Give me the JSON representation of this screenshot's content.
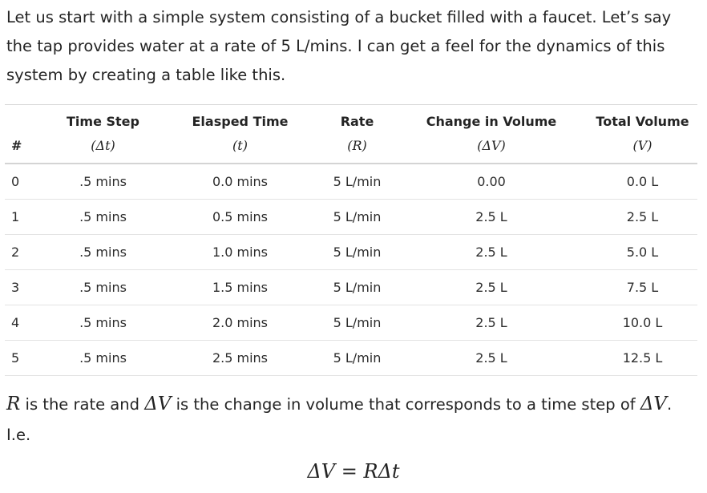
{
  "intro": {
    "line1": "Let us start with a simple system consisting of a bucket filled with a faucet. Let’s say",
    "line2": "the tap provides water at a rate of 5 L/mins. I can get a feel for the dynamics of this",
    "line3": "system by creating a table like this."
  },
  "table": {
    "headers": [
      {
        "label": "#",
        "symbol": ""
      },
      {
        "label": "Time Step",
        "symbol": "(Δt)"
      },
      {
        "label": "Elasped Time",
        "symbol": "(t)"
      },
      {
        "label": "Rate",
        "symbol": "(R)"
      },
      {
        "label": "Change in Volume",
        "symbol": "(ΔV)"
      },
      {
        "label": "Total Volume",
        "symbol": "(V)"
      }
    ],
    "rows": [
      [
        "0",
        ".5 mins",
        "0.0 mins",
        "5 L/min",
        "0.00",
        "0.0 L"
      ],
      [
        "1",
        ".5 mins",
        "0.5 mins",
        "5 L/min",
        "2.5 L",
        "2.5 L"
      ],
      [
        "2",
        ".5 mins",
        "1.0 mins",
        "5 L/min",
        "2.5 L",
        "5.0 L"
      ],
      [
        "3",
        ".5 mins",
        "1.5 mins",
        "5 L/min",
        "2.5 L",
        "7.5 L"
      ],
      [
        "4",
        ".5 mins",
        "2.0 mins",
        "5 L/min",
        "2.5 L",
        "10.0 L"
      ],
      [
        "5",
        ".5 mins",
        "2.5 mins",
        "5 L/min",
        "2.5 L",
        "12.5 L"
      ]
    ]
  },
  "after": {
    "sym_r": "R",
    "text_a": " is the rate and ",
    "sym_dv1": "ΔV",
    "text_b": " is the change in volume that corresponds to a time step of ",
    "sym_dv2": "ΔV",
    "text_c": ".",
    "line2": "I.e."
  },
  "equation": {
    "lhs": "ΔV",
    "op": " = ",
    "rhs": "RΔt"
  }
}
